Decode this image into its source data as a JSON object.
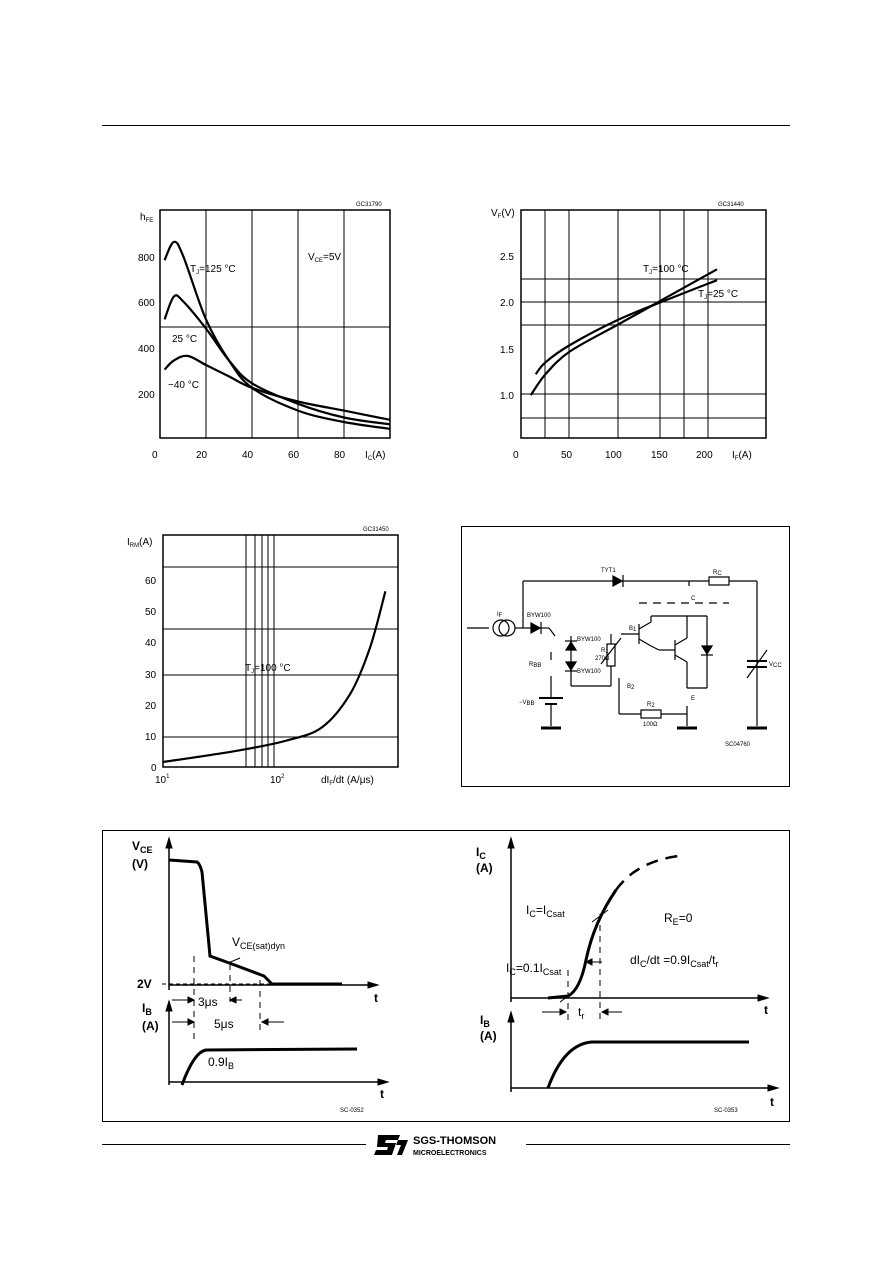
{
  "charts": {
    "hfe": {
      "code": "GC31790",
      "ylabel": "h",
      "ylabel_sub": "FE",
      "xlabel": "I",
      "xlabel_sub": "C",
      "xlabel_unit": "(A)",
      "xticks": [
        "0",
        "20",
        "40",
        "60",
        "80"
      ],
      "yticks": [
        "800",
        "600",
        "400",
        "200"
      ],
      "annot_tj125": "T",
      "annot_tj125_sub": "J",
      "annot_tj125_val": "=125 °C",
      "annot_25": "25 °C",
      "annot_m40": "−40 °C",
      "annot_vce": "V",
      "annot_vce_sub": "CE",
      "annot_vce_val": "=5V"
    },
    "vf": {
      "code": "GC31440",
      "ylabel": "V",
      "ylabel_sub": "F",
      "ylabel_unit": "(V)",
      "xlabel": "I",
      "xlabel_sub": "F",
      "xlabel_unit": "(A)",
      "xticks": [
        "0",
        "50",
        "100",
        "150",
        "200"
      ],
      "yticks": [
        "2.5",
        "2.0",
        "1.5",
        "1.0"
      ],
      "annot_tj100": "T",
      "annot_tj100_sub": "J",
      "annot_tj100_val": "=100 °C",
      "annot_tj25": "T",
      "annot_tj25_sub": "J",
      "annot_tj25_val": "=25 °C"
    },
    "irm": {
      "code": "GC31450",
      "ylabel": "I",
      "ylabel_sub": "RM",
      "ylabel_unit": "(A)",
      "xlabel": "dI",
      "xlabel_sub": "F",
      "xlabel_unit": "/dt (A/μs)",
      "xtick_1": "10",
      "xtick_1_exp": "1",
      "xtick_2": "10",
      "xtick_2_exp": "2",
      "yticks": [
        "60",
        "50",
        "40",
        "30",
        "20",
        "10",
        "0"
      ],
      "annot_tj": "T",
      "annot_tj_sub": "J",
      "annot_tj_val": "=100 °C"
    }
  },
  "chart_data": [
    {
      "type": "line",
      "code": "GC31790",
      "xlabel": "IC (A)",
      "ylabel": "hFE",
      "xlim": [
        0,
        100
      ],
      "ylim": [
        0,
        1000
      ],
      "grid": true,
      "series": [
        {
          "name": "TJ=125 °C",
          "x": [
            2,
            6,
            10,
            20,
            30,
            40,
            60,
            80,
            100
          ],
          "y": [
            780,
            860,
            800,
            520,
            340,
            220,
            120,
            70,
            40
          ]
        },
        {
          "name": "25 °C",
          "x": [
            2,
            6,
            10,
            20,
            30,
            40,
            60,
            80,
            100
          ],
          "y": [
            520,
            620,
            600,
            480,
            340,
            240,
            150,
            90,
            60
          ]
        },
        {
          "name": "−40 °C",
          "x": [
            2,
            6,
            12,
            20,
            30,
            40,
            60,
            80,
            100
          ],
          "y": [
            300,
            340,
            360,
            320,
            270,
            220,
            160,
            120,
            80
          ]
        }
      ]
    },
    {
      "type": "line",
      "code": "GC31440",
      "xlabel": "IF (A)",
      "ylabel": "VF (V)",
      "xlim": [
        0,
        250
      ],
      "ylim": [
        0.5,
        3.0
      ],
      "grid": true,
      "series": [
        {
          "name": "TJ=100 °C",
          "x": [
            10,
            25,
            50,
            100,
            150,
            200
          ],
          "y": [
            0.97,
            1.2,
            1.45,
            1.75,
            2.05,
            2.35
          ]
        },
        {
          "name": "TJ=25 °C",
          "x": [
            15,
            25,
            50,
            100,
            150,
            200
          ],
          "y": [
            1.2,
            1.33,
            1.52,
            1.8,
            2.02,
            2.23
          ]
        }
      ]
    },
    {
      "type": "line",
      "code": "GC31450",
      "xlabel": "dIF/dt (A/μs)",
      "ylabel": "IRM (A)",
      "xscale": "log",
      "xlim": [
        10,
        300
      ],
      "ylim": [
        0,
        70
      ],
      "grid": true,
      "series": [
        {
          "name": "TJ=100 °C",
          "x": [
            10,
            30,
            60,
            100,
            150,
            200,
            250
          ],
          "y": [
            1.5,
            5,
            8,
            12,
            22,
            36,
            53
          ]
        }
      ]
    }
  ],
  "circuit": {
    "code": "SC04760",
    "labels": {
      "tyt": "TYT1",
      "rc": "R",
      "rc_sub": "C",
      "c": "C",
      "ib": "I",
      "ib_sub": "F",
      "byw1": "BYW100",
      "byw2": "BYW100",
      "byw3": "BYW100",
      "b1": "B",
      "b1_sub": "1",
      "r1": "R",
      "r1_sub": "1",
      "r1_val": "270Ω",
      "rbb": "R",
      "rbb_sub": "BB",
      "b2": "B",
      "b2_sub": "2",
      "vbb": "−V",
      "vbb_sub": "BB",
      "r2": "R",
      "r2_sub": "2",
      "r2_val": "100Ω",
      "e": "E",
      "vcc": "V",
      "vcc_sub": "CC"
    }
  },
  "waveforms": {
    "left": {
      "code": "SC-0352",
      "vce": "V",
      "vce_sub": "CE",
      "vce_unit": "(V)",
      "vce_sat": "V",
      "vce_sat_sub": "CE(sat)dyn",
      "two_v": "2V",
      "t_axis": "t",
      "t3": "3μs",
      "t5": "5μs",
      "ib": "I",
      "ib_sub": "B",
      "ib_unit": "(A)",
      "ib09": "0.9I",
      "ib09_sub": "B",
      "t_axis2": "t"
    },
    "right": {
      "code": "SC-0353",
      "ic": "I",
      "ic_sub": "C",
      "ic_unit": "(A)",
      "icsat": "I",
      "icsat_sub": "C",
      "icsat_eq": "=I",
      "icsat_eq_sub": "Csat",
      "rc0": "R",
      "rc0_sub": "E",
      "rc0_val": "=0",
      "ic01": "I",
      "ic01_sub": "C",
      "ic01_eq": "=0.1I",
      "ic01_eq_sub": "Csat",
      "slope": "dI",
      "slope_sub": "C",
      "slope_eq": "/dt =0.9I",
      "slope_eq_sub": "Csat",
      "slope_end": "/t",
      "slope_end_sub": "r",
      "t_axis": "t",
      "tr": "t",
      "tr_sub": "r",
      "ib": "I",
      "ib_sub": "B",
      "ib_unit": "(A)",
      "t_axis2": "t"
    }
  },
  "footer": {
    "brand": "SGS-THOMSON",
    "sub": "MICROELECTRONICS"
  }
}
